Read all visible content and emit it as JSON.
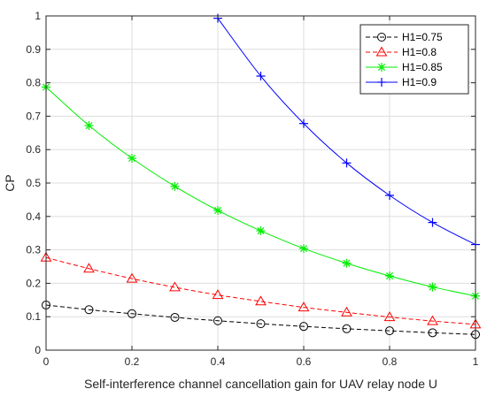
{
  "chart_data": {
    "type": "line",
    "title": "",
    "xlabel": "Self-interference channel cancellation gain for UAV relay node U",
    "ylabel": "CP",
    "xlim": [
      0,
      1
    ],
    "ylim": [
      0,
      1
    ],
    "x_ticks": [
      0,
      0.2,
      0.4,
      0.6,
      0.8,
      1
    ],
    "x_tick_labels": [
      "0",
      "0.2",
      "0.4",
      "0.6",
      "0.8",
      "1"
    ],
    "y_ticks": [
      0,
      0.1,
      0.2,
      0.3,
      0.4,
      0.5,
      0.6,
      0.7,
      0.8,
      0.9,
      1
    ],
    "y_tick_labels": [
      "0",
      "0.1",
      "0.2",
      "0.3",
      "0.4",
      "0.5",
      "0.6",
      "0.7",
      "0.8",
      "0.9",
      "1"
    ],
    "grid": true,
    "legend_position": "top-right",
    "x": [
      0,
      0.1,
      0.2,
      0.3,
      0.4,
      0.5,
      0.6,
      0.7,
      0.8,
      0.9,
      1.0
    ],
    "series": [
      {
        "name": "H1=0.75",
        "color": "#000000",
        "line_style": "dashed",
        "marker": "circle",
        "values": [
          0.135,
          0.121,
          0.109,
          0.098,
          0.088,
          0.079,
          0.071,
          0.064,
          0.058,
          0.052,
          0.047
        ]
      },
      {
        "name": "H1=0.8",
        "color": "#ff0000",
        "line_style": "dashed",
        "marker": "triangle",
        "values": [
          0.277,
          0.244,
          0.214,
          0.188,
          0.165,
          0.146,
          0.128,
          0.113,
          0.099,
          0.087,
          0.077
        ]
      },
      {
        "name": "H1=0.85",
        "color": "#00ee00",
        "line_style": "solid",
        "marker": "asterisk",
        "values": [
          0.787,
          0.672,
          0.574,
          0.49,
          0.418,
          0.357,
          0.304,
          0.26,
          0.222,
          0.189,
          0.162
        ]
      },
      {
        "name": "H1=0.9",
        "color": "#0000ff",
        "line_style": "solid",
        "marker": "plus",
        "x": [
          0.4,
          0.5,
          0.6,
          0.7,
          0.8,
          0.9,
          1.0
        ],
        "values": [
          0.993,
          0.82,
          0.678,
          0.56,
          0.463,
          0.382,
          0.316
        ]
      }
    ]
  }
}
